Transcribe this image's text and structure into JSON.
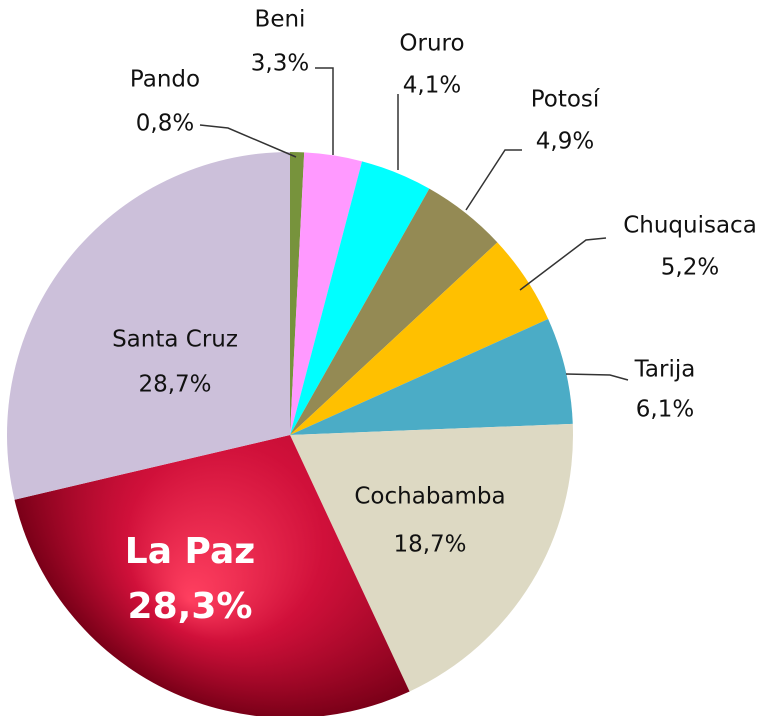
{
  "chart_data": {
    "type": "pie",
    "categories": [
      "Pando",
      "Beni",
      "Oruro",
      "Potosí",
      "Chuquisaca",
      "Tarija",
      "Cochabamba",
      "La Paz",
      "Santa Cruz"
    ],
    "values": [
      0.8,
      3.3,
      4.1,
      4.9,
      5.2,
      6.1,
      18.7,
      28.3,
      28.7
    ],
    "value_labels": [
      "0,8%",
      "3,3%",
      "4,1%",
      "4,9%",
      "5,2%",
      "6,1%",
      "18,7%",
      "28,3%",
      "28,7%"
    ],
    "colors": [
      "#77933c",
      "#ff99ff",
      "#00ffff",
      "#948a54",
      "#ffc000",
      "#4bacc6",
      "#ddd9c3",
      "#d0103a",
      "#ccc0da"
    ]
  }
}
